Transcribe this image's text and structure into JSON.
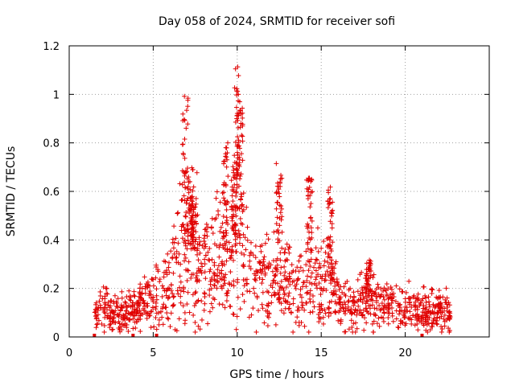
{
  "chart_data": {
    "type": "scatter",
    "title": "Day 058 of 2024, SRMTID for receiver sofi",
    "xlabel": "GPS time / hours",
    "ylabel": "SRMTID / TECUs",
    "xlim": [
      0,
      25
    ],
    "ylim": [
      0,
      1.2
    ],
    "grid": true,
    "x_ticks": [
      0,
      5,
      10,
      15,
      20
    ],
    "y_ticks": [
      0,
      0.2,
      0.4,
      0.6,
      0.8,
      1,
      1.2
    ],
    "x_tick_labels": [
      "0",
      "5",
      "10",
      "15",
      "20"
    ],
    "y_tick_labels": [
      "0",
      "0.2",
      "0.4",
      "0.6",
      "0.8",
      "1",
      "1.2"
    ],
    "marker": "+",
    "color": "#e00000",
    "series_name": "SRMTID",
    "baseline_markers_x": [
      1.5,
      3.8,
      5.2,
      21.0
    ],
    "profile_points": [
      [
        1.5,
        0.11
      ],
      [
        2.0,
        0.12
      ],
      [
        2.5,
        0.1
      ],
      [
        3.0,
        0.1
      ],
      [
        3.5,
        0.1
      ],
      [
        4.0,
        0.11
      ],
      [
        4.5,
        0.14
      ],
      [
        5.0,
        0.15
      ],
      [
        5.5,
        0.17
      ],
      [
        6.0,
        0.22
      ],
      [
        6.5,
        0.32
      ],
      [
        7.0,
        0.38
      ],
      [
        7.5,
        0.33
      ],
      [
        8.0,
        0.28
      ],
      [
        8.5,
        0.29
      ],
      [
        9.0,
        0.32
      ],
      [
        9.5,
        0.3
      ],
      [
        10.0,
        0.38
      ],
      [
        10.5,
        0.33
      ],
      [
        11.0,
        0.26
      ],
      [
        11.5,
        0.23
      ],
      [
        12.0,
        0.22
      ],
      [
        12.5,
        0.25
      ],
      [
        13.0,
        0.21
      ],
      [
        13.5,
        0.19
      ],
      [
        14.0,
        0.18
      ],
      [
        14.5,
        0.27
      ],
      [
        15.0,
        0.2
      ],
      [
        15.5,
        0.22
      ],
      [
        16.0,
        0.16
      ],
      [
        16.5,
        0.13
      ],
      [
        17.0,
        0.12
      ],
      [
        17.5,
        0.15
      ],
      [
        18.0,
        0.14
      ],
      [
        18.5,
        0.13
      ],
      [
        19.0,
        0.14
      ],
      [
        19.5,
        0.12
      ],
      [
        20.0,
        0.11
      ],
      [
        20.5,
        0.12
      ],
      [
        21.0,
        0.1
      ],
      [
        21.5,
        0.11
      ],
      [
        22.0,
        0.11
      ],
      [
        22.5,
        0.1
      ],
      [
        22.7,
        0.1
      ]
    ],
    "peaks": [
      {
        "x": 6.9,
        "y": 1.0
      },
      {
        "x": 7.2,
        "y": 0.7
      },
      {
        "x": 7.4,
        "y": 0.58
      },
      {
        "x": 9.3,
        "y": 0.8
      },
      {
        "x": 9.8,
        "y": 0.72
      },
      {
        "x": 10.0,
        "y": 1.14
      },
      {
        "x": 10.15,
        "y": 0.95
      },
      {
        "x": 12.5,
        "y": 0.72
      },
      {
        "x": 14.3,
        "y": 0.66
      },
      {
        "x": 15.5,
        "y": 0.62
      },
      {
        "x": 17.8,
        "y": 0.32
      }
    ]
  }
}
